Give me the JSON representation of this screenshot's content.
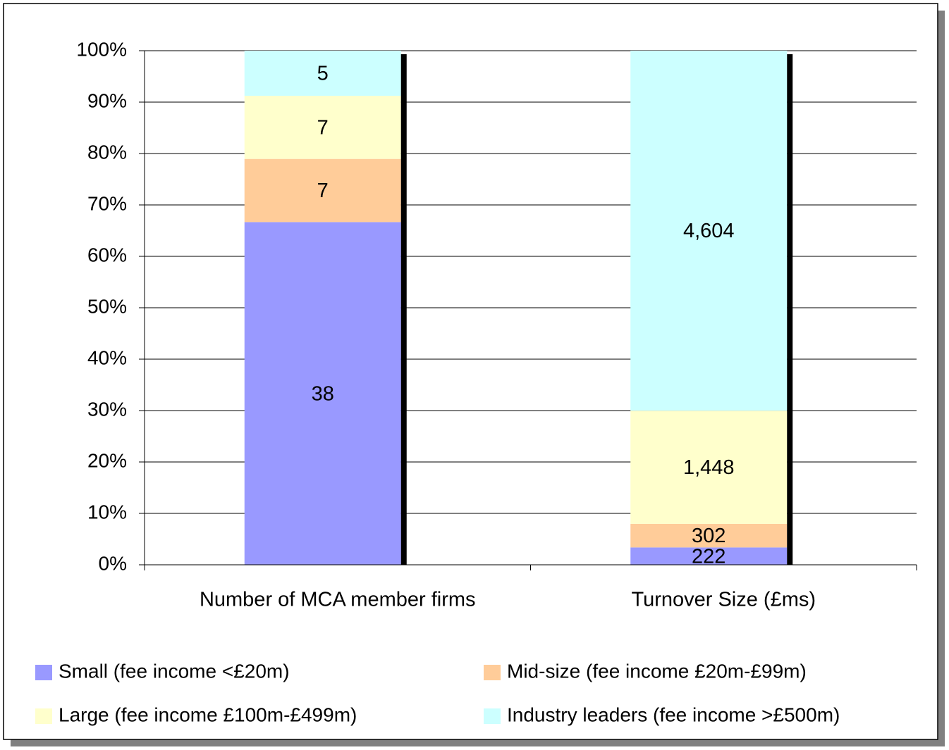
{
  "chart_data": {
    "type": "bar",
    "stacked": "percent",
    "categories": [
      "Number of MCA member firms",
      "Turnover Size (£ms)"
    ],
    "series": [
      {
        "name": "Small (fee income <£20m)",
        "color": "#9999ff",
        "values": [
          38,
          222
        ]
      },
      {
        "name": "Mid-size (fee income £20m-£99m)",
        "color": "#ffcc99",
        "values": [
          7,
          302
        ]
      },
      {
        "name": "Large (fee income £100m-£499m)",
        "color": "#ffffcc",
        "values": [
          7,
          1448
        ],
        "value_labels": [
          "7",
          "1,448"
        ]
      },
      {
        "name": "Industry leaders (fee income >£500m)",
        "color": "#ccffff",
        "values": [
          5,
          4604
        ],
        "value_labels": [
          "5",
          "4,604"
        ]
      }
    ],
    "ylim": [
      0,
      100
    ],
    "yticks": [
      {
        "value": 0,
        "label": "0%"
      },
      {
        "value": 10,
        "label": "10%"
      },
      {
        "value": 20,
        "label": "20%"
      },
      {
        "value": 30,
        "label": "30%"
      },
      {
        "value": 40,
        "label": "40%"
      },
      {
        "value": 50,
        "label": "50%"
      },
      {
        "value": 60,
        "label": "60%"
      },
      {
        "value": 70,
        "label": "70%"
      },
      {
        "value": 80,
        "label": "80%"
      },
      {
        "value": 90,
        "label": "90%"
      },
      {
        "value": 100,
        "label": "100%"
      }
    ],
    "grid": true,
    "legend": "bottom"
  }
}
